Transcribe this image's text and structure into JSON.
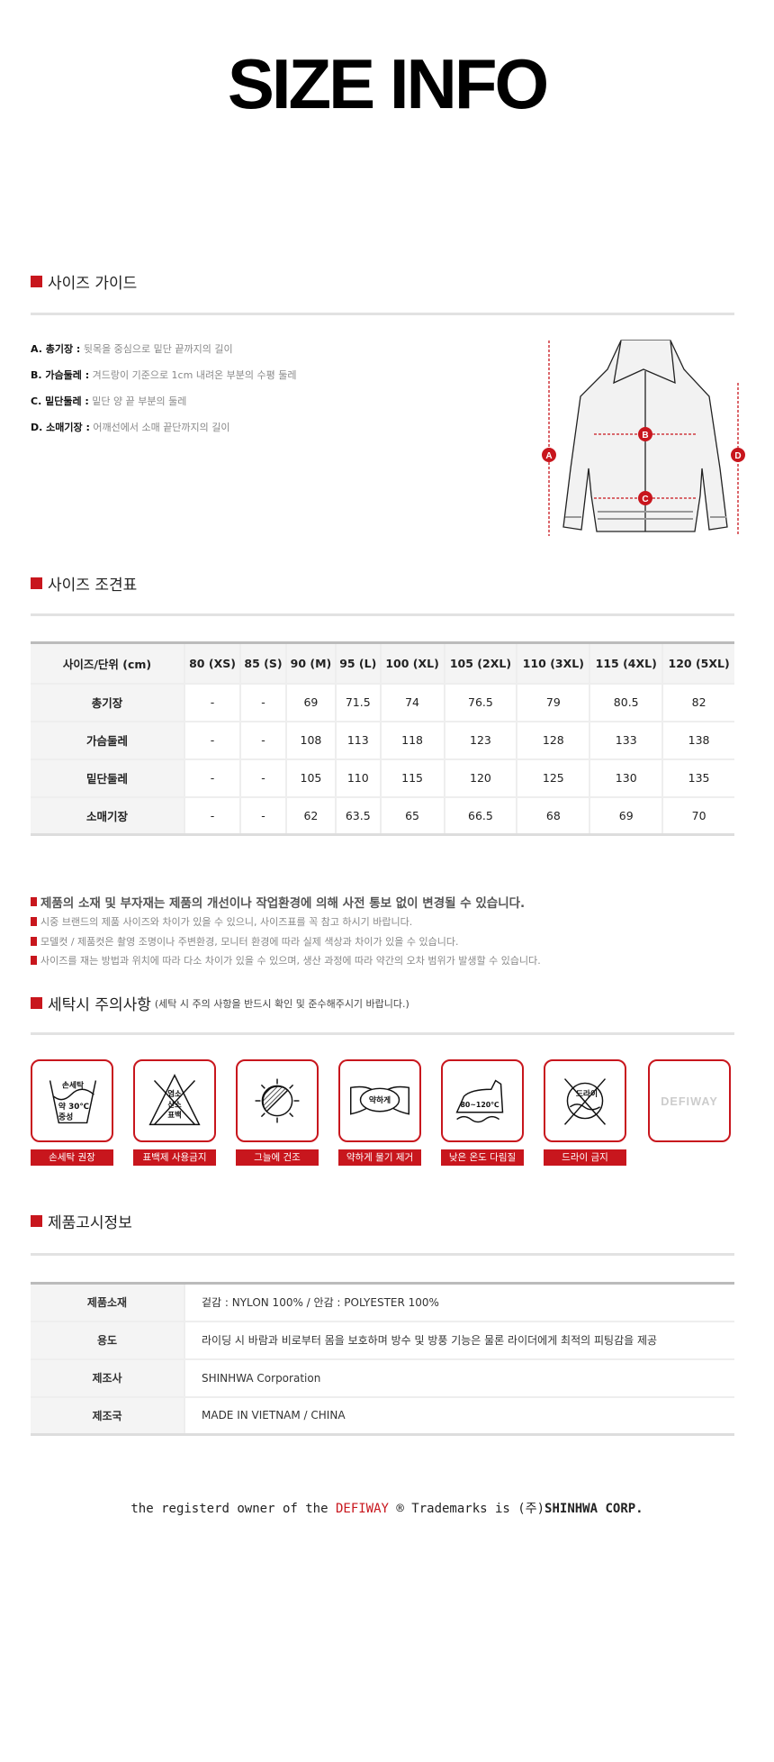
{
  "title": "SIZE INFO",
  "colors": {
    "accent": "#c8161d",
    "divider": "#e2e2e2",
    "header_bg": "#f4f4f4"
  },
  "size_guide": {
    "heading": "사이즈 가이드",
    "items": [
      {
        "key": "A. 총기장 :",
        "desc": "뒷목을 중심으로 밑단 끝까지의 길이"
      },
      {
        "key": "B. 가슴둘레 :",
        "desc": "겨드랑이 기준으로 1cm 내려온 부분의 수평 둘레"
      },
      {
        "key": "C. 밑단둘레 :",
        "desc": "밑단 양 끝 부분의 둘레"
      },
      {
        "key": "D. 소매기장 :",
        "desc": "어깨선에서 소매 끝단까지의 길이"
      }
    ],
    "diagram_markers": [
      "A",
      "B",
      "C",
      "D"
    ]
  },
  "size_table": {
    "heading": "사이즈 조견표",
    "columns": [
      "사이즈/단위 (cm)",
      "80 (XS)",
      "85 (S)",
      "90 (M)",
      "95 (L)",
      "100 (XL)",
      "105 (2XL)",
      "110 (3XL)",
      "115 (4XL)",
      "120 (5XL)"
    ],
    "rows": [
      [
        "총기장",
        "-",
        "-",
        "69",
        "71.5",
        "74",
        "76.5",
        "79",
        "80.5",
        "82"
      ],
      [
        "가슴둘레",
        "-",
        "-",
        "108",
        "113",
        "118",
        "123",
        "128",
        "133",
        "138"
      ],
      [
        "밑단둘레",
        "-",
        "-",
        "105",
        "110",
        "115",
        "120",
        "125",
        "130",
        "135"
      ],
      [
        "소매기장",
        "-",
        "-",
        "62",
        "63.5",
        "65",
        "66.5",
        "68",
        "69",
        "70"
      ]
    ]
  },
  "notes": [
    "제품의 소재 및 부자재는 제품의 개선이나 작업환경에 의해 사전 통보 없이 변경될 수 있습니다.",
    "시중 브랜드의 제품 사이즈와 차이가 있을 수 있으니, 사이즈표를 꼭 참고 하시기 바랍니다.",
    "모델컷 / 제품컷은 촬영 조명이나 주변환경, 모니터 환경에 따라 실제 색상과 차이가 있을 수 있습니다.",
    "사이즈를 재는 방법과 위치에 따라 다소 차이가 있을 수 있으며, 생산 과정에 따라 약간의 오차 범위가 발생할 수 있습니다."
  ],
  "care": {
    "heading": "세탁시 주의사항",
    "subheading": "(세탁 시 주의 사항을 반드시 확인 및 준수해주시기 바랍니다.)",
    "icons": [
      {
        "icon": "hand-wash-icon",
        "label": "손세탁 권장",
        "texts": [
          "손세탁",
          "약 30℃",
          "중성"
        ]
      },
      {
        "icon": "no-bleach-icon",
        "label": "표백제 사용금지",
        "texts": [
          "염소",
          "산소",
          "표백"
        ]
      },
      {
        "icon": "shade-dry-icon",
        "label": "그늘에 건조",
        "texts": []
      },
      {
        "icon": "gentle-wring-icon",
        "label": "약하게 물기 제거",
        "texts": [
          "약하게"
        ]
      },
      {
        "icon": "low-iron-icon",
        "label": "낮은 온도 다림질",
        "texts": [
          "80~120℃"
        ]
      },
      {
        "icon": "no-dry-clean-icon",
        "label": "드라이 금지",
        "texts": [
          "드라이"
        ]
      },
      {
        "icon": "brand-logo",
        "label": "",
        "texts": [
          "DEFIWAY"
        ]
      }
    ]
  },
  "product_info": {
    "heading": "제품고시정보",
    "rows": [
      [
        "제품소재",
        "겉감 : NYLON 100% / 안감 : POLYESTER 100%"
      ],
      [
        "용도",
        "라이딩 시 바람과 비로부터 몸을 보호하며 방수 및 방풍 기능은 물론 라이더에게 최적의 피팅감을 제공"
      ],
      [
        "제조사",
        "SHINHWA Corporation"
      ],
      [
        "제조국",
        "MADE IN VIETNAM / CHINA"
      ]
    ]
  },
  "footer": {
    "prefix": "the registerd owner of the",
    "brand": "DEFIWAY",
    "middle": "® Trademarks is (주)",
    "company": "SHINHWA CORP."
  }
}
